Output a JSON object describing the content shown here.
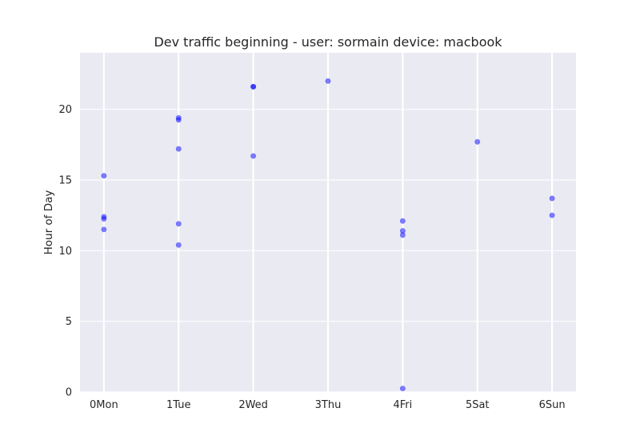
{
  "chart_data": {
    "type": "scatter",
    "title": "Dev traffic beginning - user: sormain device: macbook",
    "xlabel": "",
    "ylabel": "Hour of Day",
    "x_tick_labels": [
      "0Mon",
      "1Tue",
      "2Wed",
      "3Thu",
      "4Fri",
      "5Sat",
      "6Sun"
    ],
    "x_ticks": [
      0,
      1,
      2,
      3,
      4,
      5,
      6
    ],
    "xlim": [
      -0.32,
      6.32
    ],
    "y_ticks": [
      0,
      5,
      10,
      15,
      20
    ],
    "ylim": [
      0,
      24
    ],
    "grid": true,
    "point_color": "#0000ff",
    "point_alpha": 0.5,
    "background_color": "#eaeaf2",
    "points": [
      {
        "x": 0,
        "y": 15.3
      },
      {
        "x": 0,
        "y": 12.4
      },
      {
        "x": 0,
        "y": 12.25
      },
      {
        "x": 0,
        "y": 11.5
      },
      {
        "x": 1,
        "y": 19.4
      },
      {
        "x": 1,
        "y": 19.25
      },
      {
        "x": 1,
        "y": 17.2
      },
      {
        "x": 1,
        "y": 11.9
      },
      {
        "x": 1,
        "y": 10.4
      },
      {
        "x": 2,
        "y": 21.6
      },
      {
        "x": 2,
        "y": 21.6
      },
      {
        "x": 2,
        "y": 16.7
      },
      {
        "x": 3,
        "y": 22.0
      },
      {
        "x": 4,
        "y": 12.1
      },
      {
        "x": 4,
        "y": 11.4
      },
      {
        "x": 4,
        "y": 11.1
      },
      {
        "x": 4,
        "y": 0.25
      },
      {
        "x": 5,
        "y": 17.7
      },
      {
        "x": 6,
        "y": 13.7
      },
      {
        "x": 6,
        "y": 12.5
      }
    ]
  }
}
